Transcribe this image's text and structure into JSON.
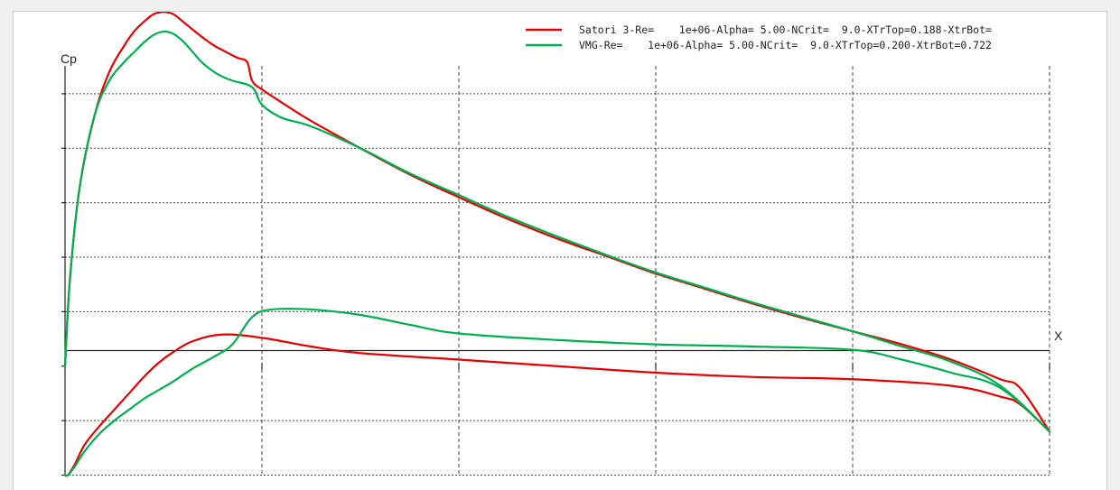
{
  "chart_data": {
    "type": "line",
    "xlabel": "X",
    "ylabel": "Cp",
    "xlim": [
      0,
      1
    ],
    "ylim": [
      -1.0,
      3.0
    ],
    "y_inverted": false,
    "grid": true,
    "legend_position": "top-right",
    "series": [
      {
        "name": "Satori 3-Re=    1e+06-Alpha= 5.00-NCrit=  9.0-XTrTop=0.188-XtrBot=",
        "color": "#e60000",
        "upper": {
          "x": [
            0.0,
            0.005,
            0.015,
            0.03,
            0.045,
            0.06,
            0.07,
            0.08,
            0.09,
            0.1,
            0.11,
            0.12,
            0.135,
            0.15,
            0.16,
            0.175,
            0.185,
            0.19,
            0.2,
            0.22,
            0.25,
            0.3,
            0.35,
            0.4,
            0.45,
            0.5,
            0.55,
            0.6,
            0.65,
            0.7,
            0.75,
            0.8,
            0.85,
            0.9,
            0.95,
            0.97,
            1.0
          ],
          "y": [
            0.0,
            0.8,
            1.65,
            2.3,
            2.7,
            2.94,
            3.07,
            3.16,
            3.23,
            3.25,
            3.23,
            3.16,
            3.05,
            2.95,
            2.9,
            2.83,
            2.79,
            2.62,
            2.54,
            2.42,
            2.25,
            2.0,
            1.76,
            1.55,
            1.35,
            1.17,
            1.01,
            0.85,
            0.71,
            0.57,
            0.44,
            0.32,
            0.2,
            0.06,
            -0.12,
            -0.2,
            -0.6
          ]
        },
        "lower": {
          "x": [
            0.0,
            0.003,
            0.01,
            0.02,
            0.035,
            0.05,
            0.065,
            0.08,
            0.095,
            0.11,
            0.13,
            0.16,
            0.2,
            0.25,
            0.3,
            0.4,
            0.5,
            0.6,
            0.7,
            0.8,
            0.9,
            0.95,
            0.97,
            1.0
          ],
          "y": [
            -1.0,
            -1.0,
            -0.9,
            -0.72,
            -0.55,
            -0.4,
            -0.25,
            -0.1,
            0.03,
            0.13,
            0.23,
            0.29,
            0.26,
            0.18,
            0.12,
            0.06,
            0.0,
            -0.06,
            -0.1,
            -0.12,
            -0.18,
            -0.28,
            -0.35,
            -0.6
          ]
        }
      },
      {
        "name": "VMG-Re=    1e+06-Alpha= 5.00-NCrit=  9.0-XTrTop=0.200-XtrBot=0.722",
        "color": "#00b050",
        "upper": {
          "x": [
            0.0,
            0.005,
            0.015,
            0.03,
            0.045,
            0.06,
            0.07,
            0.08,
            0.09,
            0.1,
            0.11,
            0.12,
            0.13,
            0.14,
            0.155,
            0.17,
            0.19,
            0.2,
            0.22,
            0.25,
            0.3,
            0.35,
            0.4,
            0.45,
            0.5,
            0.55,
            0.6,
            0.65,
            0.7,
            0.75,
            0.8,
            0.85,
            0.9,
            0.95,
            1.0
          ],
          "y": [
            0.0,
            0.8,
            1.65,
            2.3,
            2.62,
            2.79,
            2.88,
            2.97,
            3.04,
            3.07,
            3.05,
            2.98,
            2.88,
            2.78,
            2.68,
            2.62,
            2.56,
            2.4,
            2.28,
            2.2,
            2.0,
            1.77,
            1.57,
            1.37,
            1.19,
            1.02,
            0.86,
            0.72,
            0.58,
            0.45,
            0.32,
            0.18,
            0.04,
            -0.18,
            -0.6
          ]
        },
        "lower": {
          "x": [
            0.0,
            0.003,
            0.01,
            0.02,
            0.035,
            0.05,
            0.065,
            0.08,
            0.095,
            0.11,
            0.13,
            0.15,
            0.17,
            0.19,
            0.21,
            0.25,
            0.3,
            0.35,
            0.4,
            0.5,
            0.6,
            0.7,
            0.8,
            0.85,
            0.9,
            0.95,
            1.0
          ],
          "y": [
            -1.0,
            -1.0,
            -0.92,
            -0.78,
            -0.62,
            -0.5,
            -0.4,
            -0.3,
            -0.22,
            -0.14,
            -0.02,
            0.08,
            0.2,
            0.45,
            0.52,
            0.52,
            0.47,
            0.38,
            0.3,
            0.24,
            0.2,
            0.18,
            0.15,
            0.06,
            -0.06,
            -0.2,
            -0.6
          ]
        }
      }
    ]
  }
}
